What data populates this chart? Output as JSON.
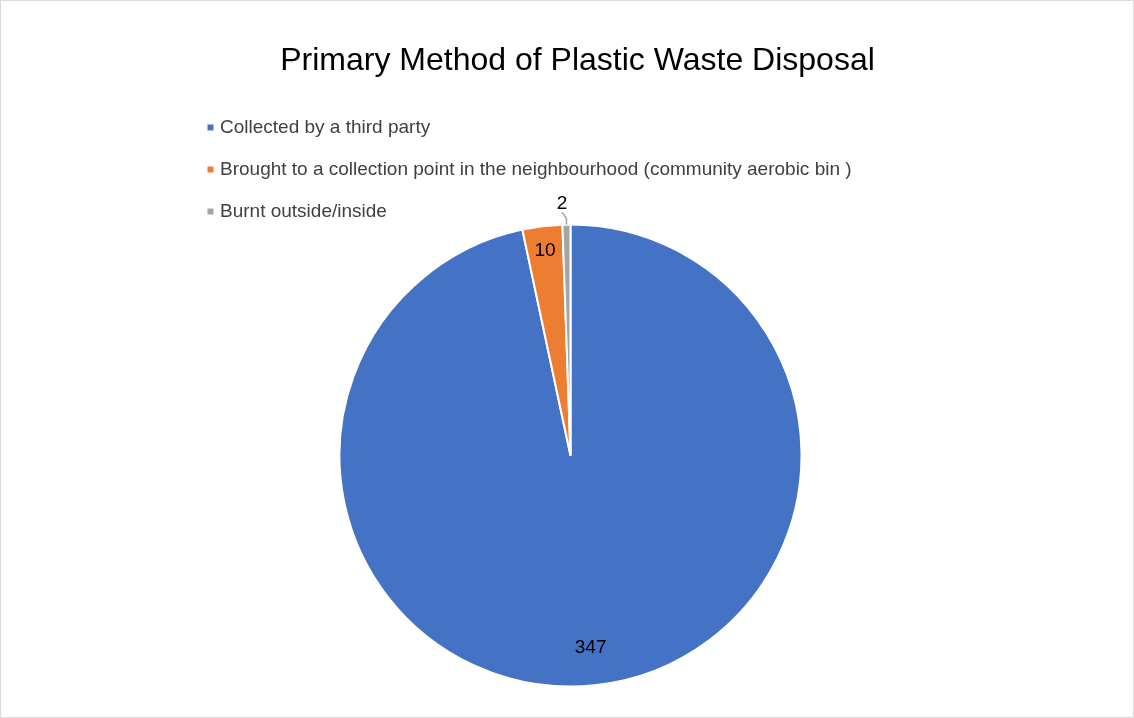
{
  "chart_data": {
    "type": "pie",
    "title": "Primary Method of Plastic Waste Disposal",
    "categories": [
      "Collected by a third party",
      "Brought to a collection point in the neighbourhood (community aerobic bin )",
      "Burnt outside/inside"
    ],
    "values": [
      347,
      10,
      2
    ],
    "colors": [
      "#4472c4",
      "#ed7d31",
      "#a5a5a5"
    ],
    "data_labels": true,
    "legend": "top left"
  }
}
